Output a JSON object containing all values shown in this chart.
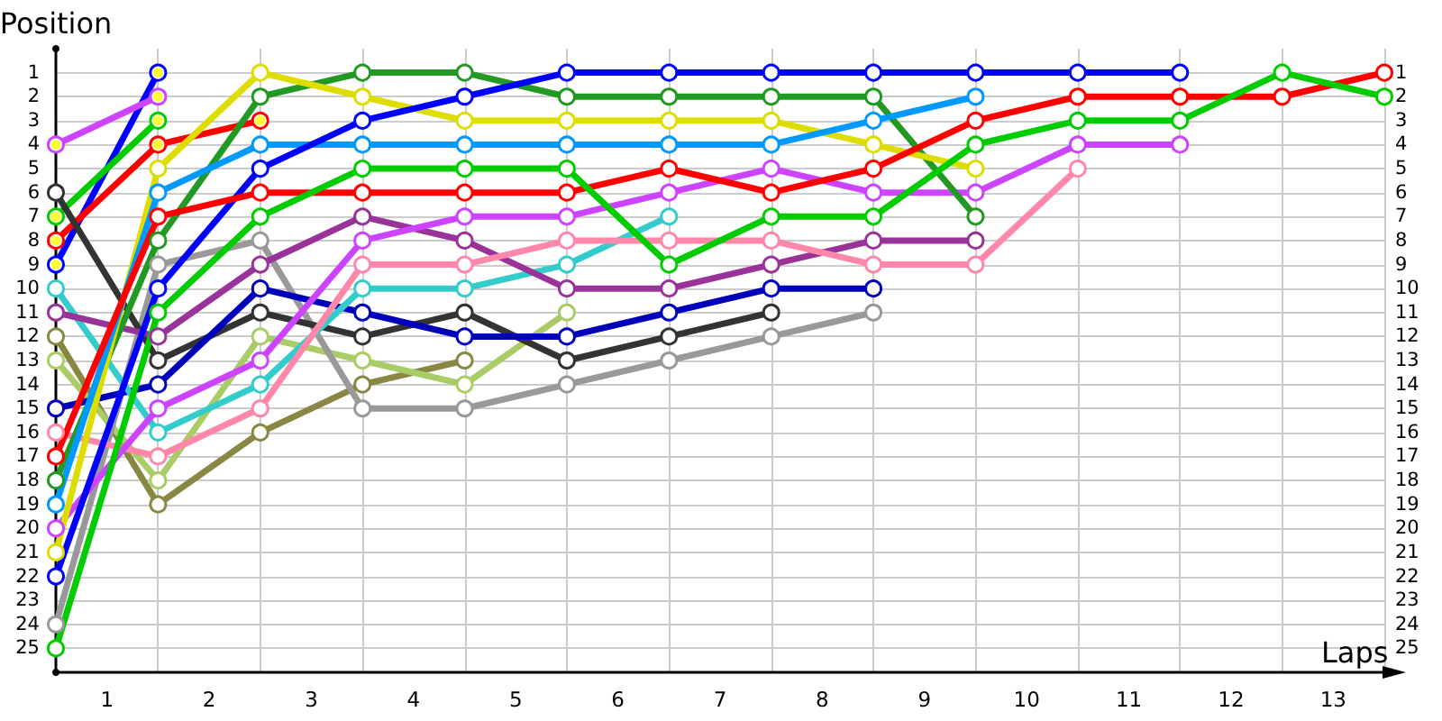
{
  "chart_data": {
    "type": "line",
    "xlabel": "Laps",
    "ylabel": "Position",
    "marker": "circle",
    "line_style": "solid",
    "grid": true,
    "x": [
      0,
      1,
      2,
      3,
      4,
      5,
      6,
      7,
      8,
      9,
      10,
      11,
      12,
      13
    ],
    "xlim": [
      0,
      13
    ],
    "xticks": [
      {
        "value": 0.5,
        "label": "1"
      },
      {
        "value": 1,
        "label": null
      },
      {
        "value": 1.5,
        "label": "2"
      },
      {
        "value": 2,
        "label": null
      },
      {
        "value": 2.5,
        "label": "3"
      },
      {
        "value": 3,
        "label": null
      },
      {
        "value": 3.5,
        "label": "4"
      },
      {
        "value": 4,
        "label": null
      },
      {
        "value": 4.5,
        "label": "5"
      },
      {
        "value": 5,
        "label": null
      },
      {
        "value": 5.5,
        "label": "6"
      },
      {
        "value": 6,
        "label": null
      },
      {
        "value": 6.5,
        "label": "7"
      },
      {
        "value": 7,
        "label": null
      },
      {
        "value": 7.5,
        "label": "8"
      },
      {
        "value": 8,
        "label": null
      },
      {
        "value": 8.5,
        "label": "9"
      },
      {
        "value": 9,
        "label": null
      },
      {
        "value": 9.5,
        "label": "10"
      },
      {
        "value": 10,
        "label": null
      },
      {
        "value": 10.5,
        "label": "11"
      },
      {
        "value": 11,
        "label": null
      },
      {
        "value": 11.5,
        "label": "12"
      },
      {
        "value": 12,
        "label": null
      },
      {
        "value": 12.5,
        "label": "13"
      },
      {
        "value": 13,
        "label": null
      }
    ],
    "ylim": [
      26,
      0
    ],
    "yticks": [
      1,
      2,
      3,
      4,
      5,
      6,
      7,
      8,
      9,
      10,
      11,
      12,
      13,
      14,
      15,
      16,
      17,
      18,
      19,
      20,
      21,
      22,
      23,
      24,
      25
    ],
    "y2lim": [
      26,
      0
    ],
    "y2ticks": [
      1,
      2,
      3,
      4,
      5,
      6,
      7,
      8,
      9,
      10,
      11,
      12,
      13,
      14,
      15,
      16,
      17,
      18,
      19,
      20,
      21,
      22,
      23,
      24,
      25
    ],
    "series": [
      {
        "color": "#0000ff",
        "values": [
          9,
          1,
          null,
          null,
          null,
          null,
          null,
          null,
          null,
          null,
          null,
          null,
          null,
          null
        ]
      },
      {
        "color": "#cc44ff",
        "values": [
          4,
          2,
          null,
          null,
          null,
          null,
          null,
          null,
          null,
          null,
          null,
          null,
          null,
          null
        ]
      },
      {
        "color": "#00cc00",
        "values": [
          7,
          3,
          null,
          null,
          null,
          null,
          null,
          null,
          null,
          null,
          null,
          null,
          null,
          null
        ]
      },
      {
        "color": "#ff0000",
        "values": [
          8,
          4,
          3,
          null,
          null,
          null,
          null,
          null,
          null,
          null,
          null,
          null,
          null,
          null
        ]
      },
      {
        "color": "#888844",
        "values": [
          12,
          19,
          16,
          14,
          13,
          null,
          null,
          null,
          null,
          null,
          null,
          null,
          null,
          null
        ]
      },
      {
        "color": "#aacc66",
        "values": [
          13,
          18,
          12,
          13,
          14,
          11,
          null,
          null,
          null,
          null,
          null,
          null,
          null,
          null
        ]
      },
      {
        "color": "#999999",
        "values": [
          24,
          9,
          8,
          15,
          15,
          14,
          13,
          12,
          11,
          null,
          null,
          null,
          null,
          null
        ]
      },
      {
        "color": "#333333",
        "values": [
          6,
          13,
          11,
          12,
          11,
          13,
          12,
          11,
          null,
          null,
          null,
          null,
          null,
          null
        ]
      },
      {
        "color": "#0000bb",
        "values": [
          15,
          14,
          10,
          11,
          12,
          12,
          11,
          10,
          10,
          null,
          null,
          null,
          null,
          null
        ]
      },
      {
        "color": "#33cccc",
        "values": [
          10,
          16,
          14,
          10,
          10,
          9,
          7,
          null,
          null,
          null,
          null,
          null,
          null,
          null
        ]
      },
      {
        "color": "#993399",
        "values": [
          11,
          12,
          9,
          7,
          8,
          10,
          10,
          9,
          8,
          8,
          null,
          null,
          null,
          null
        ]
      },
      {
        "color": "#ff88aa",
        "values": [
          16,
          17,
          15,
          9,
          9,
          8,
          8,
          8,
          9,
          9,
          5,
          null,
          null,
          null
        ]
      },
      {
        "color": "#cc44ff",
        "values": [
          20,
          15,
          13,
          8,
          7,
          7,
          6,
          5,
          6,
          6,
          4,
          4,
          null,
          null
        ]
      },
      {
        "color": "#229922",
        "values": [
          18,
          8,
          2,
          1,
          1,
          2,
          2,
          2,
          2,
          7,
          null,
          null,
          null,
          null
        ]
      },
      {
        "color": "#dddd00",
        "values": [
          21,
          5,
          1,
          2,
          3,
          3,
          3,
          3,
          4,
          5,
          null,
          null,
          null,
          null
        ]
      },
      {
        "color": "#0099ff",
        "values": [
          19,
          6,
          4,
          4,
          4,
          4,
          4,
          4,
          3,
          2,
          null,
          null,
          null,
          null
        ]
      },
      {
        "color": "#0000ff",
        "values": [
          22,
          10,
          5,
          3,
          2,
          1,
          1,
          1,
          1,
          1,
          1,
          1,
          null,
          null
        ]
      },
      {
        "color": "#ff0000",
        "values": [
          17,
          7,
          6,
          6,
          6,
          6,
          5,
          6,
          5,
          3,
          2,
          2,
          2,
          1
        ]
      },
      {
        "color": "#00cc00",
        "values": [
          25,
          11,
          7,
          5,
          5,
          5,
          9,
          7,
          7,
          4,
          3,
          3,
          1,
          2
        ]
      },
      {
        "type": "scatter",
        "color": "#ffff00",
        "x": [
          0,
          0,
          0,
          0,
          1,
          1,
          1,
          1,
          2
        ],
        "values": [
          4,
          7,
          8,
          9,
          1,
          2,
          3,
          4,
          3
        ]
      }
    ]
  }
}
